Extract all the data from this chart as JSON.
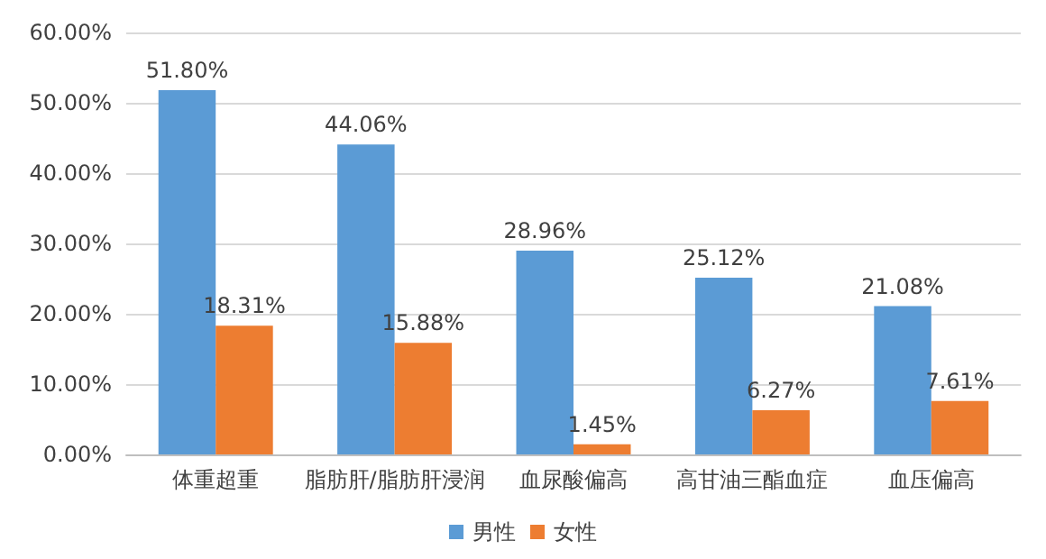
{
  "chart_data": {
    "type": "bar",
    "categories": [
      "体重超重",
      "脂肪肝/脂肪肝浸润",
      "血尿酸偏高",
      "高甘油三酯血症",
      "血压偏高"
    ],
    "series": [
      {
        "name": "男性",
        "color": "#5b9bd5",
        "values": [
          51.8,
          44.06,
          28.96,
          25.12,
          21.08
        ],
        "value_labels": [
          "51.80%",
          "44.06%",
          "28.96%",
          "25.12%",
          "21.08%"
        ]
      },
      {
        "name": "女性",
        "color": "#ed7d31",
        "values": [
          18.31,
          15.88,
          1.45,
          6.27,
          7.61
        ],
        "value_labels": [
          "18.31%",
          "15.88%",
          "1.45%",
          "6.27%",
          "7.61%"
        ]
      }
    ],
    "ylim": [
      0,
      60
    ],
    "yticks": [
      {
        "value": 0,
        "label": "0.00%"
      },
      {
        "value": 10,
        "label": "10.00%"
      },
      {
        "value": 20,
        "label": "20.00%"
      },
      {
        "value": 30,
        "label": "30.00%"
      },
      {
        "value": 40,
        "label": "40.00%"
      },
      {
        "value": 50,
        "label": "50.00%"
      },
      {
        "value": 60,
        "label": "60.00%"
      }
    ],
    "grid": "y",
    "legend": "bottom"
  }
}
